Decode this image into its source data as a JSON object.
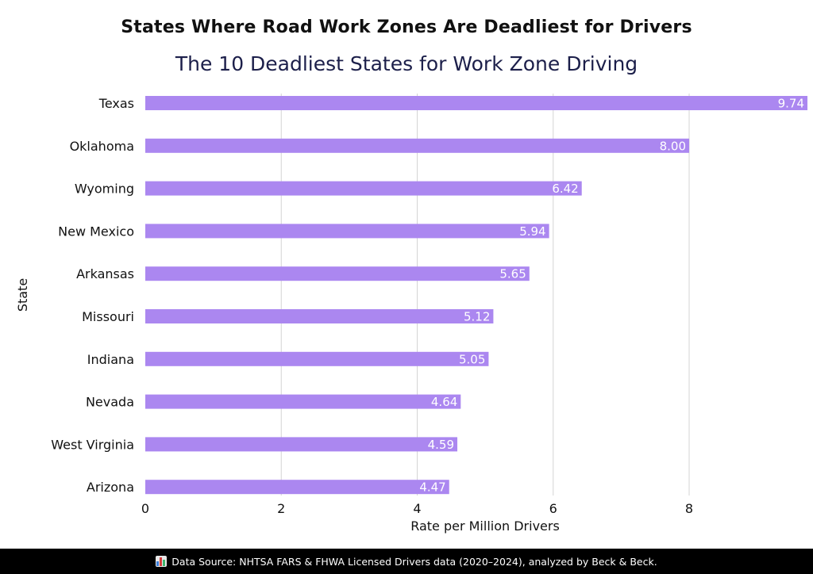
{
  "chart_data": {
    "type": "bar",
    "orientation": "horizontal",
    "title": "States Where Road Work Zones Are Deadliest for Drivers",
    "subtitle": "The 10 Deadliest States for Work Zone Driving",
    "xlabel": "Rate per Million Drivers",
    "ylabel": "State",
    "categories": [
      "Texas",
      "Oklahoma",
      "Wyoming",
      "New Mexico",
      "Arkansas",
      "Missouri",
      "Indiana",
      "Nevada",
      "West Virginia",
      "Arizona"
    ],
    "values": [
      9.74,
      8.0,
      6.42,
      5.94,
      5.65,
      5.12,
      5.05,
      4.64,
      4.59,
      4.47
    ],
    "value_labels": [
      "9.74",
      "8.00",
      "6.42",
      "5.94",
      "5.65",
      "5.12",
      "5.05",
      "4.64",
      "4.59",
      "4.47"
    ],
    "xticks": [
      "0",
      "2",
      "4",
      "6",
      "8"
    ],
    "xtick_values": [
      0,
      2,
      4,
      6,
      8
    ],
    "xlim": [
      0,
      9.74
    ],
    "grid": "vertical",
    "bar_color": "#ab87f0",
    "grid_color": "#d4d4d4",
    "label_color": "#ffffff"
  },
  "footer": {
    "icon": "bar-chart-icon",
    "text": "Data Source: NHTSA FARS & FHWA Licensed Drivers data (2020–2024), analyzed by Beck & Beck."
  }
}
